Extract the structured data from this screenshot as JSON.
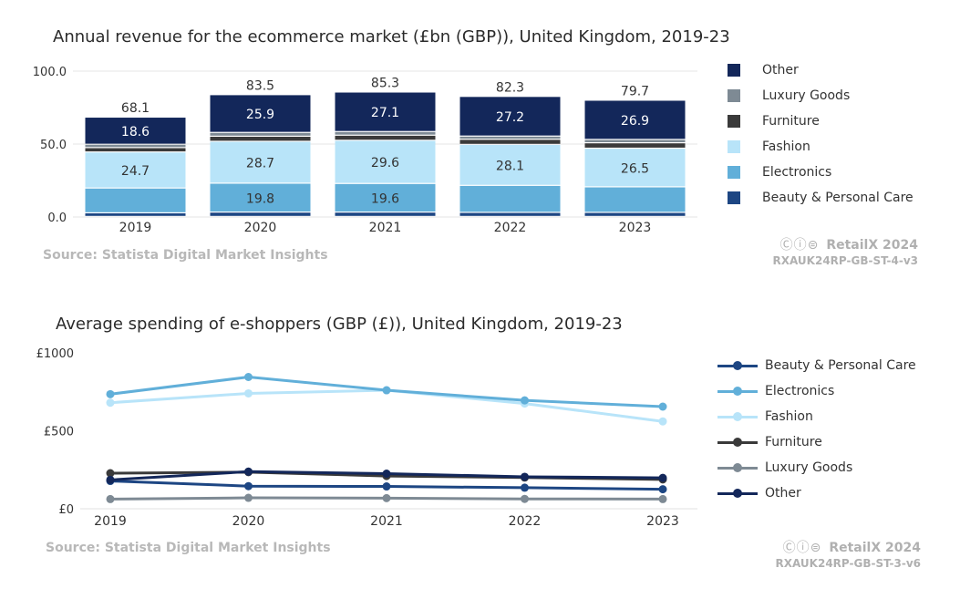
{
  "colors": {
    "Other": "#13275a",
    "Luxury Goods": "#7e8a94",
    "Furniture": "#3a3a3a",
    "Fashion": "#b8e4f9",
    "Electronics": "#61afd9",
    "Beauty & Personal Care": "#1d4683"
  },
  "revenue": {
    "title": "Annual revenue for the ecommerce market (£bn (GBP)), United Kingdom, 2019-23",
    "source": "Source: Statista Digital Market Insights",
    "brand": "RetailX 2024",
    "code": "RXAUK24RP-GB-ST-4-v3",
    "legend": [
      "Other",
      "Luxury Goods",
      "Furniture",
      "Fashion",
      "Electronics",
      "Beauty & Personal Care"
    ]
  },
  "spending": {
    "title": "Average spending of e-shoppers (GBP (£)), United Kingdom, 2019-23",
    "source": "Source: Statista Digital Market Insights",
    "brand": "RetailX 2024",
    "code": "RXAUK24RP-GB-ST-3-v6",
    "legend": [
      "Beauty & Personal Care",
      "Electronics",
      "Fashion",
      "Furniture",
      "Luxury Goods",
      "Other"
    ]
  },
  "chart_data": [
    {
      "type": "bar",
      "stacked": true,
      "title": "Annual revenue for the ecommerce market (£bn (GBP)), United Kingdom, 2019-23",
      "categories": [
        "2019",
        "2020",
        "2021",
        "2022",
        "2023"
      ],
      "ylim": [
        0,
        100
      ],
      "yticks": [
        "0.0",
        "50.0",
        "100.0"
      ],
      "totals": [
        "68.1",
        "83.5",
        "85.3",
        "82.3",
        "79.7"
      ],
      "series": [
        {
          "name": "Beauty & Personal Care",
          "values": [
            2.5,
            3.0,
            3.0,
            2.8,
            2.8
          ],
          "labels": [
            "",
            "",
            "",
            "",
            ""
          ]
        },
        {
          "name": "Electronics",
          "values": [
            17.0,
            19.8,
            19.6,
            18.5,
            17.5
          ],
          "labels": [
            "",
            "19.8",
            "19.6",
            "",
            ""
          ]
        },
        {
          "name": "Fashion",
          "values": [
            24.7,
            28.7,
            29.6,
            28.1,
            26.5
          ],
          "labels": [
            "24.7",
            "28.7",
            "29.6",
            "28.1",
            "26.5"
          ]
        },
        {
          "name": "Furniture",
          "values": [
            3.0,
            3.5,
            3.5,
            3.5,
            3.7
          ],
          "labels": [
            "",
            "",
            "",
            "",
            ""
          ]
        },
        {
          "name": "Luxury Goods",
          "values": [
            2.3,
            2.6,
            2.5,
            2.2,
            2.3
          ],
          "labels": [
            "",
            "",
            "",
            "",
            ""
          ]
        },
        {
          "name": "Other",
          "values": [
            18.6,
            25.9,
            27.1,
            27.2,
            26.9
          ],
          "labels": [
            "18.6",
            "25.9",
            "27.1",
            "27.2",
            "26.9"
          ]
        }
      ]
    },
    {
      "type": "line",
      "title": "Average spending of e-shoppers (GBP (£)), United Kingdom, 2019-23",
      "categories": [
        "2019",
        "2020",
        "2021",
        "2022",
        "2023"
      ],
      "ylim": [
        0,
        1000
      ],
      "yticks": [
        "£0",
        "£500",
        "£1000"
      ],
      "series": [
        {
          "name": "Beauty & Personal Care",
          "values": [
            178,
            145,
            143,
            135,
            125
          ]
        },
        {
          "name": "Electronics",
          "values": [
            735,
            845,
            760,
            695,
            655
          ]
        },
        {
          "name": "Fashion",
          "values": [
            680,
            740,
            760,
            675,
            560
          ]
        },
        {
          "name": "Furniture",
          "values": [
            228,
            235,
            210,
            200,
            188
          ]
        },
        {
          "name": "Luxury Goods",
          "values": [
            62,
            70,
            68,
            63,
            62
          ]
        },
        {
          "name": "Other",
          "values": [
            185,
            238,
            225,
            205,
            198
          ]
        }
      ]
    }
  ]
}
